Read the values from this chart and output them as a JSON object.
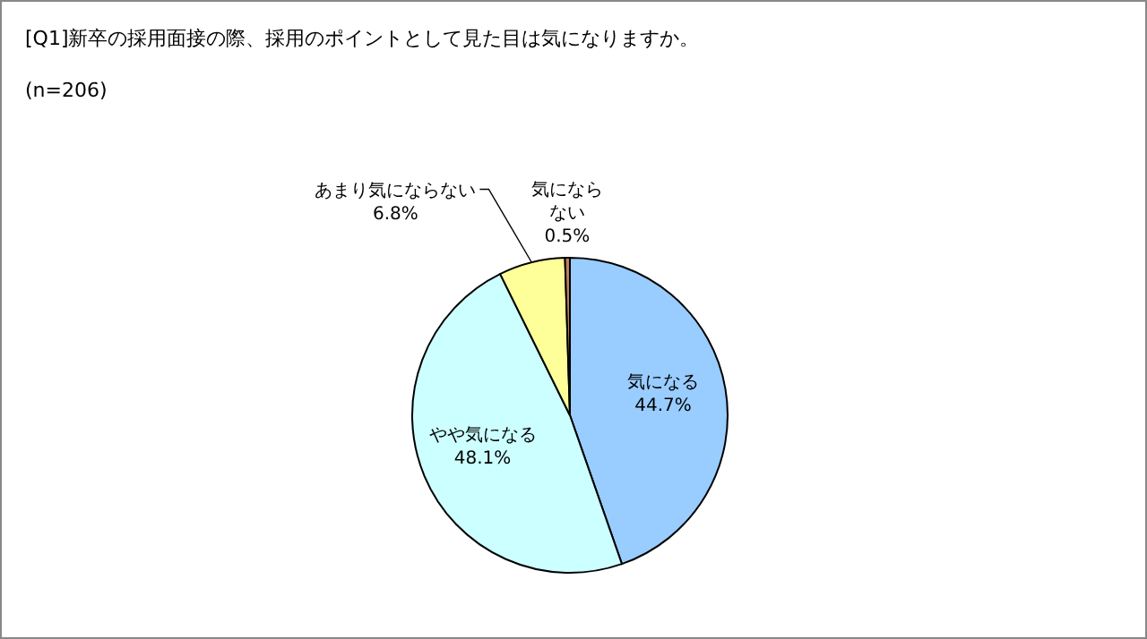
{
  "chart_data": {
    "type": "pie",
    "title": "[Q1]新卒の採用面接の際、採用のポイントとして見た目は気になりますか。",
    "subtitle": "(n=206)",
    "categories": [
      "気になる",
      "やや気になる",
      "あまり気にならない",
      "気にならない"
    ],
    "values": [
      44.7,
      48.1,
      6.8,
      0.5
    ],
    "value_labels": [
      "44.7%",
      "48.1%",
      "6.8%",
      "0.5%"
    ],
    "colors": [
      "#99ccff",
      "#ccffff",
      "#ffff99",
      "#c08060"
    ]
  }
}
